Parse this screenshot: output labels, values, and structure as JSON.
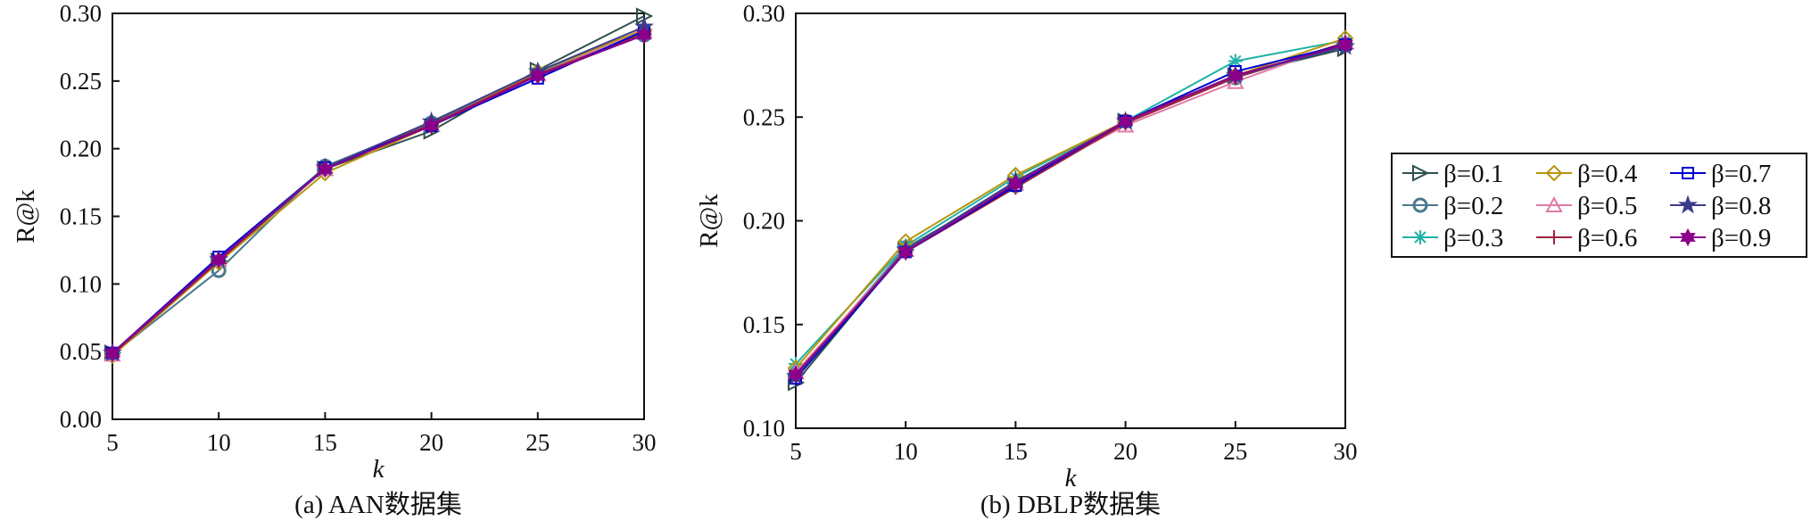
{
  "chart_data": [
    {
      "type": "line",
      "title": "",
      "caption": "(a) AAN数据集",
      "xlabel": "k",
      "ylabel": "R@k",
      "x": [
        5,
        10,
        15,
        20,
        25,
        30
      ],
      "xticks": [
        "5",
        "10",
        "15",
        "20",
        "25",
        "30"
      ],
      "yticks": [
        "0.00",
        "0.05",
        "0.10",
        "0.15",
        "0.20",
        "0.25",
        "0.30"
      ],
      "xlim": [
        5,
        30
      ],
      "ylim": [
        0.0,
        0.3
      ],
      "grid": false,
      "series": [
        {
          "name": "β=0.1",
          "values": [
            0.049,
            0.117,
            0.185,
            0.213,
            0.258,
            0.298
          ]
        },
        {
          "name": "β=0.2",
          "values": [
            0.048,
            0.11,
            0.187,
            0.219,
            0.255,
            0.284
          ]
        },
        {
          "name": "β=0.3",
          "values": [
            0.049,
            0.118,
            0.185,
            0.218,
            0.256,
            0.286
          ]
        },
        {
          "name": "β=0.4",
          "values": [
            0.047,
            0.116,
            0.182,
            0.217,
            0.257,
            0.288
          ]
        },
        {
          "name": "β=0.5",
          "values": [
            0.048,
            0.118,
            0.185,
            0.218,
            0.255,
            0.287
          ]
        },
        {
          "name": "β=0.6",
          "values": [
            0.048,
            0.117,
            0.186,
            0.218,
            0.255,
            0.285
          ]
        },
        {
          "name": "β=0.7",
          "values": [
            0.049,
            0.12,
            0.186,
            0.217,
            0.252,
            0.287
          ]
        },
        {
          "name": "β=0.8",
          "values": [
            0.049,
            0.118,
            0.186,
            0.22,
            0.257,
            0.29
          ]
        },
        {
          "name": "β=0.9",
          "values": [
            0.049,
            0.118,
            0.185,
            0.217,
            0.254,
            0.284
          ]
        }
      ]
    },
    {
      "type": "line",
      "title": "",
      "caption": "(b) DBLP数据集",
      "xlabel": "k",
      "ylabel": "R@k",
      "x": [
        5,
        10,
        15,
        20,
        25,
        30
      ],
      "xticks": [
        "5",
        "10",
        "15",
        "20",
        "25",
        "30"
      ],
      "yticks": [
        "0.10",
        "0.15",
        "0.20",
        "0.25",
        "0.30"
      ],
      "xlim": [
        5,
        30
      ],
      "ylim": [
        0.1,
        0.3
      ],
      "grid": false,
      "series": [
        {
          "name": "β=0.1",
          "values": [
            0.122,
            0.186,
            0.218,
            0.248,
            0.27,
            0.283
          ]
        },
        {
          "name": "β=0.2",
          "values": [
            0.126,
            0.187,
            0.217,
            0.248,
            0.269,
            0.285
          ]
        },
        {
          "name": "β=0.3",
          "values": [
            0.131,
            0.188,
            0.221,
            0.248,
            0.277,
            0.287
          ]
        },
        {
          "name": "β=0.4",
          "values": [
            0.129,
            0.19,
            0.222,
            0.248,
            0.27,
            0.288
          ]
        },
        {
          "name": "β=0.5",
          "values": [
            0.127,
            0.186,
            0.218,
            0.246,
            0.267,
            0.286
          ]
        },
        {
          "name": "β=0.6",
          "values": [
            0.126,
            0.185,
            0.216,
            0.247,
            0.269,
            0.286
          ]
        },
        {
          "name": "β=0.7",
          "values": [
            0.124,
            0.185,
            0.217,
            0.248,
            0.272,
            0.285
          ]
        },
        {
          "name": "β=0.8",
          "values": [
            0.125,
            0.186,
            0.219,
            0.248,
            0.27,
            0.284
          ]
        },
        {
          "name": "β=0.9",
          "values": [
            0.126,
            0.185,
            0.218,
            0.248,
            0.27,
            0.285
          ]
        }
      ]
    }
  ],
  "legend": {
    "placement": "right",
    "entries": [
      {
        "name": "β=0.1",
        "color": "#2f4f4f",
        "marker": "triangle-right"
      },
      {
        "name": "β=0.4",
        "color": "#b8960c",
        "marker": "diamond"
      },
      {
        "name": "β=0.7",
        "color": "#0000cd",
        "marker": "square"
      },
      {
        "name": "β=0.2",
        "color": "#4a7a8c",
        "marker": "circle"
      },
      {
        "name": "β=0.5",
        "color": "#e07aa8",
        "marker": "triangle-up"
      },
      {
        "name": "β=0.8",
        "color": "#3c3c8c",
        "marker": "star"
      },
      {
        "name": "β=0.3",
        "color": "#20b2aa",
        "marker": "asterisk"
      },
      {
        "name": "β=0.6",
        "color": "#a0203c",
        "marker": "plus"
      },
      {
        "name": "β=0.9",
        "color": "#8b008b",
        "marker": "hexstar"
      }
    ]
  },
  "series_style": {
    "β=0.1": {
      "color": "#2f4f4f",
      "marker": "triangle-right"
    },
    "β=0.2": {
      "color": "#4a7a8c",
      "marker": "circle"
    },
    "β=0.3": {
      "color": "#20b2aa",
      "marker": "asterisk"
    },
    "β=0.4": {
      "color": "#b8960c",
      "marker": "diamond"
    },
    "β=0.5": {
      "color": "#e07aa8",
      "marker": "triangle-up"
    },
    "β=0.6": {
      "color": "#a0203c",
      "marker": "plus"
    },
    "β=0.7": {
      "color": "#0000cd",
      "marker": "square"
    },
    "β=0.8": {
      "color": "#3c3c8c",
      "marker": "star"
    },
    "β=0.9": {
      "color": "#8b008b",
      "marker": "hexstar"
    }
  }
}
